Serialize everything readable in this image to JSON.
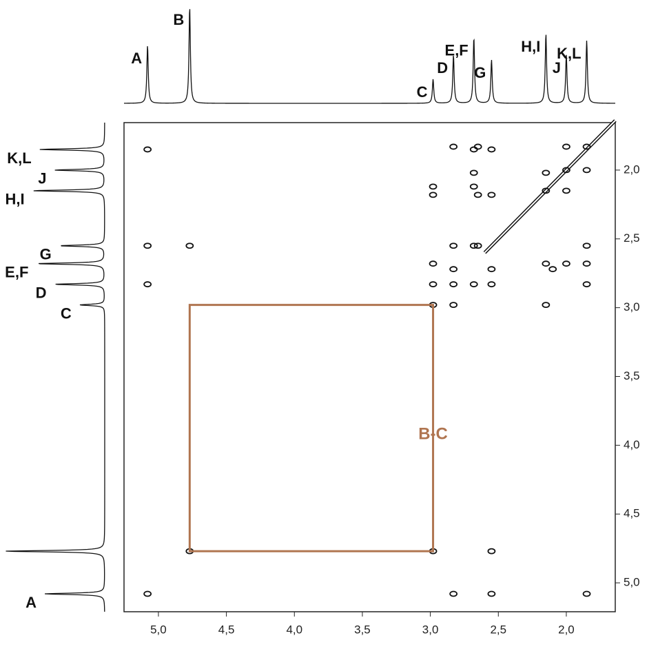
{
  "chart_data": {
    "type": "cosy",
    "xlim": [
      5.253,
      1.64
    ],
    "ylim": [
      1.655,
      5.21
    ],
    "xticks": [
      {
        "value": 5.0,
        "label": "5,0"
      },
      {
        "value": 4.5,
        "label": "4,5"
      },
      {
        "value": 4.0,
        "label": "4,0"
      },
      {
        "value": 3.5,
        "label": "3,5"
      },
      {
        "value": 3.0,
        "label": "3,0"
      },
      {
        "value": 2.5,
        "label": "2,5"
      },
      {
        "value": 2.0,
        "label": "2,0"
      }
    ],
    "yticks": [
      {
        "value": 2.0,
        "label": "2,0"
      },
      {
        "value": 2.5,
        "label": "2,5"
      },
      {
        "value": 3.0,
        "label": "3,0"
      },
      {
        "value": 3.5,
        "label": "3,5"
      },
      {
        "value": 4.0,
        "label": "4,0"
      },
      {
        "value": 4.5,
        "label": "4,5"
      },
      {
        "value": 5.0,
        "label": "5,0"
      }
    ],
    "peaks": [
      {
        "label": "A",
        "shift": 5.08,
        "height": 60
      },
      {
        "label": "B",
        "shift": 4.77,
        "height": 100
      },
      {
        "label": "C",
        "shift": 2.98,
        "height": 25
      },
      {
        "label": "D",
        "shift": 2.83,
        "height": 50
      },
      {
        "label": "E,F",
        "shift": 2.68,
        "height": 68
      },
      {
        "label": "G",
        "shift": 2.55,
        "height": 45
      },
      {
        "label": "H,I",
        "shift": 2.15,
        "height": 72
      },
      {
        "label": "J",
        "shift": 2.0,
        "height": 50
      },
      {
        "label": "K,L",
        "shift": 1.85,
        "height": 65
      }
    ],
    "diagonal_range": [
      2.6,
      1.64
    ],
    "cross_peaks": {
      "x": [
        5.08,
        2.83,
        2.68,
        2.65,
        2.55,
        2.0,
        1.85,
        2.68,
        2.15,
        2.0,
        1.85,
        2.98,
        2.98,
        2.68,
        2.65,
        2.55,
        2.15,
        2.0,
        5.08,
        4.77,
        2.83,
        2.68,
        2.65,
        1.85,
        2.98,
        2.83,
        2.55,
        2.15,
        2.1,
        2.0,
        1.85,
        5.08,
        2.98,
        2.83,
        2.68,
        2.55,
        1.85,
        2.98,
        2.15,
        2.83,
        4.77,
        2.98,
        2.55,
        5.08,
        2.83,
        2.55,
        1.85
      ],
      "y": [
        1.85,
        1.83,
        1.85,
        1.83,
        1.85,
        1.83,
        1.83,
        2.02,
        2.02,
        2.0,
        2.0,
        2.12,
        2.18,
        2.12,
        2.18,
        2.18,
        2.15,
        2.15,
        2.55,
        2.55,
        2.55,
        2.55,
        2.55,
        2.55,
        2.68,
        2.72,
        2.72,
        2.68,
        2.72,
        2.68,
        2.68,
        2.83,
        2.83,
        2.83,
        2.83,
        2.83,
        2.83,
        2.98,
        2.98,
        2.98,
        4.77,
        4.77,
        4.77,
        5.08,
        5.08,
        5.08,
        5.08
      ]
    },
    "box": {
      "label": "B-C",
      "x": [
        4.77,
        2.98
      ],
      "y": [
        2.98,
        4.77
      ],
      "color": "#b07550"
    }
  }
}
